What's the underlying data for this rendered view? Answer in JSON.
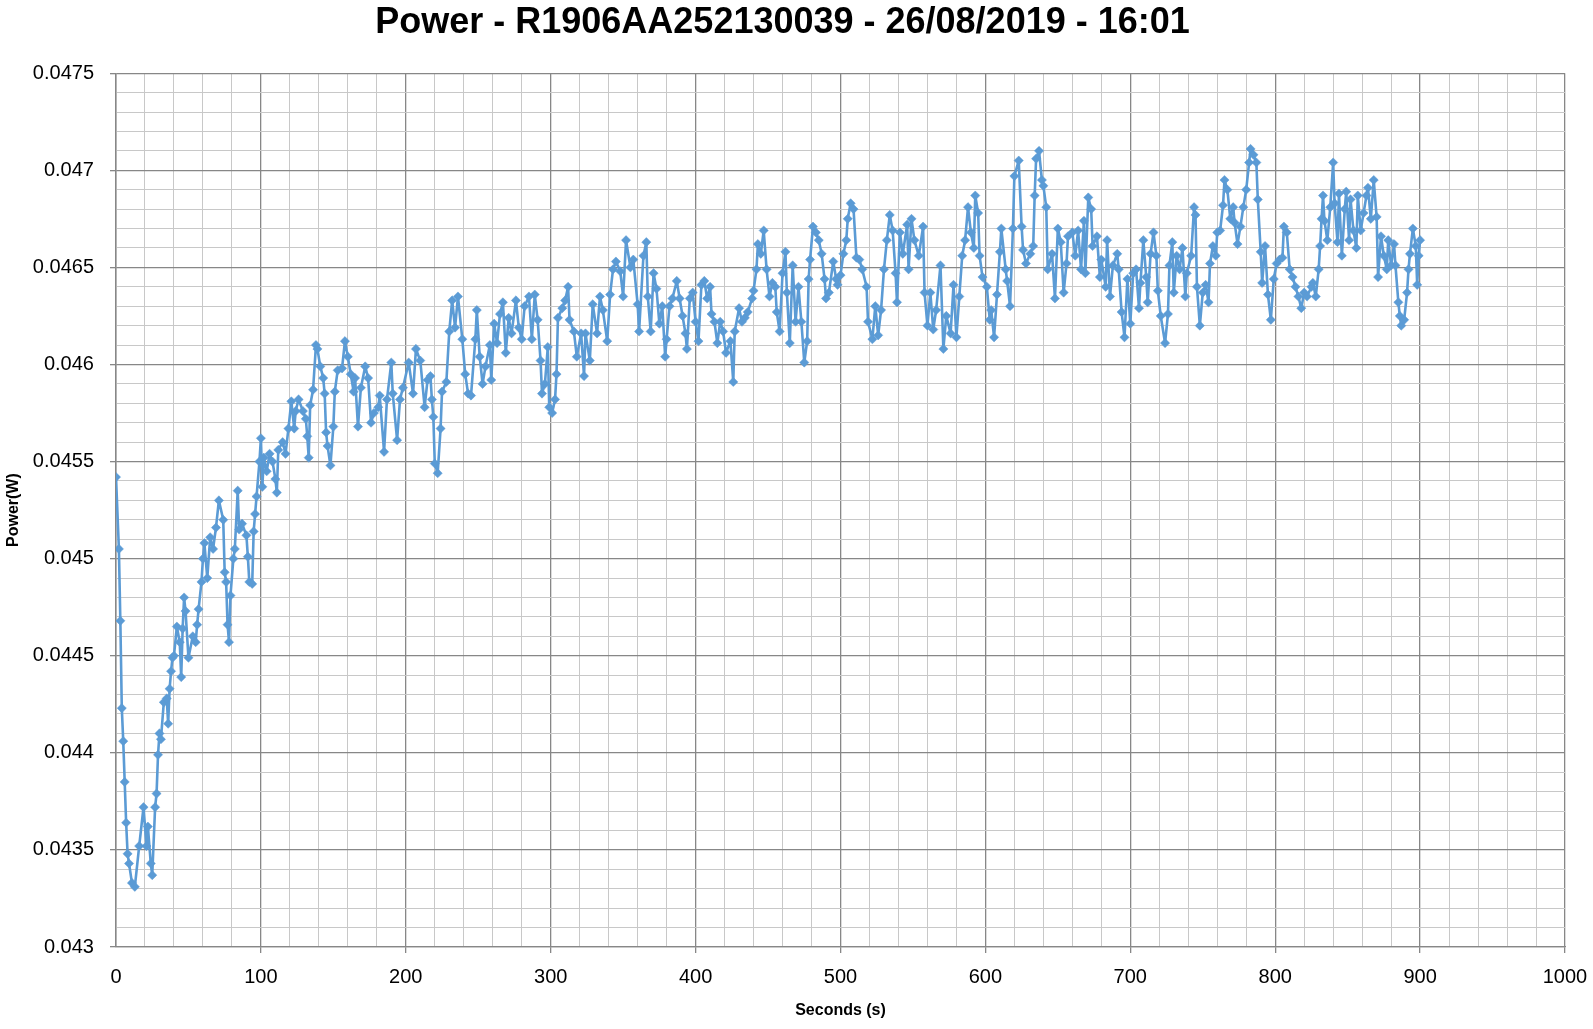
{
  "chart_data": {
    "type": "line",
    "title": "Power - R1906AA252130039 - 26/08/2019 - 16:01",
    "xlabel": "Seconds (s)",
    "ylabel": "Power(W)",
    "color": "#5b9bd5",
    "marker": "diamond",
    "line_style": "solid",
    "grid": true,
    "xlim": [
      0,
      1000
    ],
    "ylim": [
      0.043,
      0.0475
    ],
    "xticks": [
      0,
      {
        "value": 20,
        "label": null
      },
      {
        "value": 40,
        "label": null
      },
      {
        "value": 60,
        "label": null
      },
      {
        "value": 80,
        "label": null
      },
      100,
      {
        "value": 120,
        "label": null
      },
      {
        "value": 140,
        "label": null
      },
      {
        "value": 160,
        "label": null
      },
      {
        "value": 180,
        "label": null
      },
      200,
      {
        "value": 220,
        "label": null
      },
      {
        "value": 240,
        "label": null
      },
      {
        "value": 260,
        "label": null
      },
      {
        "value": 280,
        "label": null
      },
      300,
      {
        "value": 320,
        "label": null
      },
      {
        "value": 340,
        "label": null
      },
      {
        "value": 360,
        "label": null
      },
      {
        "value": 380,
        "label": null
      },
      400,
      {
        "value": 420,
        "label": null
      },
      {
        "value": 440,
        "label": null
      },
      {
        "value": 460,
        "label": null
      },
      {
        "value": 480,
        "label": null
      },
      500,
      {
        "value": 520,
        "label": null
      },
      {
        "value": 540,
        "label": null
      },
      {
        "value": 560,
        "label": null
      },
      {
        "value": 580,
        "label": null
      },
      600,
      {
        "value": 620,
        "label": null
      },
      {
        "value": 640,
        "label": null
      },
      {
        "value": 660,
        "label": null
      },
      {
        "value": 680,
        "label": null
      },
      700,
      {
        "value": 720,
        "label": null
      },
      {
        "value": 740,
        "label": null
      },
      {
        "value": 760,
        "label": null
      },
      {
        "value": 780,
        "label": null
      },
      800,
      {
        "value": 820,
        "label": null
      },
      {
        "value": 840,
        "label": null
      },
      {
        "value": 860,
        "label": null
      },
      {
        "value": 880,
        "label": null
      },
      900,
      {
        "value": 920,
        "label": null
      },
      {
        "value": 940,
        "label": null
      },
      {
        "value": 960,
        "label": null
      },
      {
        "value": 980,
        "label": null
      },
      1000
    ],
    "yticks": [
      0.043,
      {
        "value": 0.0431,
        "label": null
      },
      {
        "value": 0.0432,
        "label": null
      },
      {
        "value": 0.0433,
        "label": null
      },
      {
        "value": 0.0434,
        "label": null
      },
      0.0435,
      {
        "value": 0.0436,
        "label": null
      },
      {
        "value": 0.0437,
        "label": null
      },
      {
        "value": 0.0438,
        "label": null
      },
      {
        "value": 0.0439,
        "label": null
      },
      0.044,
      {
        "value": 0.0441,
        "label": null
      },
      {
        "value": 0.0442,
        "label": null
      },
      {
        "value": 0.0443,
        "label": null
      },
      {
        "value": 0.0444,
        "label": null
      },
      0.0445,
      {
        "value": 0.0446,
        "label": null
      },
      {
        "value": 0.0447,
        "label": null
      },
      {
        "value": 0.0448,
        "label": null
      },
      {
        "value": 0.0449,
        "label": null
      },
      0.045,
      {
        "value": 0.0451,
        "label": null
      },
      {
        "value": 0.0452,
        "label": null
      },
      {
        "value": 0.0453,
        "label": null
      },
      {
        "value": 0.0454,
        "label": null
      },
      0.0455,
      {
        "value": 0.0456,
        "label": null
      },
      {
        "value": 0.0457,
        "label": null
      },
      {
        "value": 0.0458,
        "label": null
      },
      {
        "value": 0.0459,
        "label": null
      },
      0.046,
      {
        "value": 0.0461,
        "label": null
      },
      {
        "value": 0.0462,
        "label": null
      },
      {
        "value": 0.0463,
        "label": null
      },
      {
        "value": 0.0464,
        "label": null
      },
      0.0465,
      {
        "value": 0.0466,
        "label": null
      },
      {
        "value": 0.0467,
        "label": null
      },
      {
        "value": 0.0468,
        "label": null
      },
      {
        "value": 0.0469,
        "label": null
      },
      0.047,
      {
        "value": 0.0471,
        "label": null
      },
      {
        "value": 0.0472,
        "label": null
      },
      {
        "value": 0.0473,
        "label": null
      },
      {
        "value": 0.0474,
        "label": null
      },
      0.0475
    ],
    "x": [
      0,
      2,
      3,
      4,
      5,
      6,
      7,
      8,
      9,
      11,
      13,
      16,
      19,
      21,
      22,
      24,
      25,
      27,
      28,
      29,
      30,
      31,
      33,
      35,
      36,
      37,
      38,
      39,
      40,
      42,
      44,
      45,
      46,
      47,
      48,
      50,
      53,
      55,
      56,
      57,
      59,
      60,
      61,
      63,
      65,
      67,
      69,
      71,
      74,
      75,
      76,
      77,
      78,
      79,
      81,
      82,
      84,
      85,
      87,
      90,
      91,
      92,
      94,
      95,
      96,
      97,
      99,
      100,
      101,
      102,
      104,
      106,
      108,
      110,
      111,
      112,
      115,
      117,
      119,
      121,
      123,
      124,
      126,
      129,
      131,
      132,
      133,
      134,
      136,
      138,
      139,
      141,
      143,
      144,
      145,
      146,
      148,
      150,
      151,
      153,
      156,
      158,
      160,
      162,
      164,
      165,
      167,
      169,
      172,
      174,
      176,
      178,
      181,
      182,
      185,
      187,
      190,
      191,
      194,
      196,
      198,
      202,
      205,
      207,
      210,
      213,
      215,
      217,
      218,
      219,
      220,
      222,
      224,
      225,
      228,
      230,
      232,
      234,
      236,
      239,
      241,
      243,
      245,
      248,
      249,
      251,
      253,
      255,
      258,
      259,
      261,
      263,
      265,
      267,
      269,
      271,
      273,
      276,
      278,
      280,
      282,
      285,
      287,
      289,
      291,
      293,
      294,
      296,
      298,
      299,
      301,
      303,
      304,
      305,
      308,
      310,
      312,
      313,
      316,
      318,
      321,
      323,
      324,
      327,
      329,
      332,
      334,
      336,
      339,
      341,
      343,
      345,
      348,
      350,
      352,
      355,
      357,
      360,
      361,
      364,
      366,
      367,
      369,
      371,
      373,
      375,
      377,
      379,
      380,
      382,
      384,
      387,
      389,
      391,
      393,
      394,
      396,
      398,
      400,
      402,
      404,
      406,
      408,
      410,
      411,
      413,
      415,
      417,
      419,
      421,
      424,
      426,
      427,
      430,
      432,
      434,
      436,
      439,
      440,
      442,
      443,
      445,
      447,
      449,
      451,
      453,
      455,
      456,
      458,
      460,
      462,
      463,
      465,
      467,
      469,
      471,
      473,
      475,
      477,
      478,
      479,
      481,
      483,
      485,
      487,
      489,
      490,
      492,
      495,
      497,
      498,
      500,
      502,
      504,
      505,
      507,
      509,
      511,
      513,
      515,
      518,
      519,
      522,
      524,
      526,
      528,
      530,
      532,
      534,
      536,
      538,
      539,
      541,
      543,
      546,
      547,
      549,
      551,
      554,
      557,
      558,
      560,
      562,
      564,
      566,
      569,
      571,
      573,
      576,
      578,
      580,
      582,
      584,
      586,
      588,
      590,
      592,
      593,
      595,
      596,
      598,
      601,
      603,
      604,
      606,
      608,
      610,
      611,
      614,
      615,
      617,
      619,
      620,
      623,
      625,
      626,
      628,
      631,
      633,
      634,
      635,
      637,
      639,
      640,
      642,
      643,
      646,
      648,
      650,
      652,
      654,
      656,
      657,
      660,
      662,
      664,
      666,
      668,
      669,
      671,
      673,
      674,
      677,
      679,
      680,
      683,
      684,
      686,
      688,
      691,
      692,
      694,
      696,
      698,
      700,
      702,
      704,
      706,
      707,
      709,
      711,
      712,
      714,
      716,
      718,
      719,
      721,
      724,
      726,
      727,
      729,
      730,
      732,
      734,
      736,
      738,
      739,
      742,
      744,
      745,
      746,
      748,
      750,
      752,
      754,
      755,
      757,
      759,
      760,
      762,
      764,
      765,
      767,
      769,
      771,
      772,
      774,
      776,
      778,
      780,
      782,
      783,
      785,
      787,
      788,
      790,
      791,
      793,
      795,
      797,
      799,
      801,
      803,
      805,
      806,
      808,
      810,
      812,
      814,
      816,
      818,
      820,
      822,
      825,
      826,
      828,
      830,
      831,
      832,
      833,
      834,
      836,
      838,
      840,
      841,
      843,
      844,
      846,
      848,
      849,
      851,
      852,
      854,
      856,
      857,
      859,
      861,
      863,
      864,
      866,
      868,
      870,
      871,
      873,
      875,
      877,
      878,
      880,
      882,
      883,
      885,
      886,
      887,
      889,
      891,
      892,
      893,
      895,
      897,
      898,
      899,
      900
    ],
    "values": [
      0.04542,
      0.04505,
      0.04468,
      0.04423,
      0.04406,
      0.04385,
      0.04364,
      0.04348,
      0.04343,
      0.04333,
      0.04331,
      0.04352,
      0.04372,
      0.04352,
      0.04362,
      0.04343,
      0.04337,
      0.04372,
      0.04379,
      0.04399,
      0.0441,
      0.04407,
      0.04426,
      0.04428,
      0.04415,
      0.04433,
      0.04442,
      0.04449,
      0.0445,
      0.04465,
      0.04457,
      0.04439,
      0.04464,
      0.0448,
      0.04473,
      0.04449,
      0.0446,
      0.04457,
      0.04466,
      0.04474,
      0.04488,
      0.045,
      0.04508,
      0.0449,
      0.04511,
      0.04505,
      0.04516,
      0.0453,
      0.0452,
      0.04493,
      0.04488,
      0.04466,
      0.04457,
      0.04481,
      0.045,
      0.04505,
      0.04535,
      0.04515,
      0.04518,
      0.04512,
      0.04501,
      0.04488,
      0.04487,
      0.04514,
      0.04523,
      0.04532,
      0.0455,
      0.04562,
      0.04537,
      0.04552,
      0.04545,
      0.04554,
      0.0455,
      0.04541,
      0.04534,
      0.04556,
      0.0456,
      0.04554,
      0.04567,
      0.04581,
      0.04567,
      0.04576,
      0.04582,
      0.04576,
      0.04572,
      0.04563,
      0.04552,
      0.04579,
      0.04587,
      0.0461,
      0.04608,
      0.04599,
      0.04593,
      0.04585,
      0.04565,
      0.04558,
      0.04548,
      0.04568,
      0.04586,
      0.04597,
      0.04598,
      0.04612,
      0.04604,
      0.04595,
      0.04586,
      0.04593,
      0.04568,
      0.04588,
      0.04599,
      0.04593,
      0.0457,
      0.04575,
      0.04578,
      0.04584,
      0.04555,
      0.04582,
      0.04601,
      0.04585,
      0.04561,
      0.04582,
      0.04588,
      0.04601,
      0.04585,
      0.04608,
      0.04602,
      0.04578,
      0.04592,
      0.04594,
      0.04582,
      0.04573,
      0.04549,
      0.04544,
      0.04567,
      0.04586,
      0.04591,
      0.04617,
      0.04633,
      0.04619,
      0.04635,
      0.04613,
      0.04595,
      0.04585,
      0.04584,
      0.04613,
      0.04628,
      0.04604,
      0.0459,
      0.04599,
      0.0461,
      0.04592,
      0.04621,
      0.04611,
      0.04626,
      0.04632,
      0.04606,
      0.04624,
      0.04616,
      0.04633,
      0.04619,
      0.04613,
      0.0463,
      0.04635,
      0.04613,
      0.04636,
      0.04623,
      0.04602,
      0.04585,
      0.0459,
      0.04609,
      0.04578,
      0.04575,
      0.04582,
      0.04595,
      0.04624,
      0.04629,
      0.04633,
      0.0464,
      0.04623,
      0.04617,
      0.04604,
      0.04616,
      0.04594,
      0.04616,
      0.04602,
      0.04631,
      0.04616,
      0.04635,
      0.04628,
      0.04612,
      0.04636,
      0.04649,
      0.04653,
      0.04648,
      0.04635,
      0.04664,
      0.0465,
      0.04654,
      0.04631,
      0.04617,
      0.04656,
      0.04663,
      0.04635,
      0.04617,
      0.04647,
      0.04639,
      0.04621,
      0.0463,
      0.04604,
      0.04613,
      0.0463,
      0.04634,
      0.04643,
      0.04634,
      0.04625,
      0.04616,
      0.04608,
      0.04634,
      0.04637,
      0.04622,
      0.04612,
      0.04641,
      0.04643,
      0.04634,
      0.0464,
      0.04626,
      0.04622,
      0.04611,
      0.04622,
      0.04617,
      0.04606,
      0.04612,
      0.04591,
      0.04617,
      0.04629,
      0.04622,
      0.04624,
      0.04627,
      0.04634,
      0.04638,
      0.04649,
      0.04662,
      0.04657,
      0.04669,
      0.04649,
      0.04635,
      0.04642,
      0.0464,
      0.04627,
      0.04617,
      0.04647,
      0.04658,
      0.04637,
      0.04611,
      0.04651,
      0.04622,
      0.0464,
      0.04622,
      0.04601,
      0.04612,
      0.04644,
      0.04654,
      0.04671,
      0.04668,
      0.04664,
      0.04657,
      0.04644,
      0.04634,
      0.04637,
      0.04653,
      0.04644,
      0.04641,
      0.04646,
      0.04657,
      0.04664,
      0.04675,
      0.04683,
      0.0468,
      0.04655,
      0.04654,
      0.04649,
      0.0464,
      0.04622,
      0.04613,
      0.0463,
      0.04615,
      0.04628,
      0.04649,
      0.04664,
      0.04677,
      0.04669,
      0.04647,
      0.04632,
      0.04668,
      0.04657,
      0.04672,
      0.04649,
      0.04675,
      0.04664,
      0.04656,
      0.04671,
      0.04637,
      0.0462,
      0.04637,
      0.04618,
      0.04628,
      0.04651,
      0.04608,
      0.04625,
      0.04616,
      0.04641,
      0.04614,
      0.04635,
      0.04656,
      0.04664,
      0.04681,
      0.04668,
      0.0466,
      0.04687,
      0.04678,
      0.04656,
      0.04645,
      0.0464,
      0.04623,
      0.04628,
      0.04614,
      0.04636,
      0.04658,
      0.0467,
      0.04649,
      0.04643,
      0.0463,
      0.0467,
      0.04697,
      0.04705,
      0.04671,
      0.04659,
      0.04652,
      0.04657,
      0.04661,
      0.04687,
      0.04706,
      0.0471,
      0.04695,
      0.04692,
      0.04681,
      0.04649,
      0.04657,
      0.04634,
      0.0467,
      0.04663,
      0.04637,
      0.04652,
      0.04666,
      0.04668,
      0.04656,
      0.04669,
      0.04649,
      0.04674,
      0.04647,
      0.04686,
      0.0468,
      0.04661,
      0.04666,
      0.04645,
      0.04654,
      0.0464,
      0.04664,
      0.04635,
      0.04651,
      0.04657,
      0.04649,
      0.04627,
      0.04614,
      0.04644,
      0.04621,
      0.04647,
      0.04649,
      0.04629,
      0.04642,
      0.04664,
      0.04645,
      0.04632,
      0.04657,
      0.04668,
      0.04656,
      0.04638,
      0.04625,
      0.04611,
      0.04626,
      0.04651,
      0.04663,
      0.04637,
      0.04656,
      0.04649,
      0.0466,
      0.04635,
      0.04647,
      0.04656,
      0.04681,
      0.04677,
      0.0464,
      0.0462,
      0.04637,
      0.04641,
      0.04632,
      0.04652,
      0.04661,
      0.04656,
      0.04668,
      0.04669,
      0.04682,
      0.04695,
      0.0469,
      0.04675,
      0.04681,
      0.04673,
      0.04662,
      0.04671,
      0.04681,
      0.0469,
      0.04704,
      0.04711,
      0.04708,
      0.04704,
      0.04685,
      0.04658,
      0.04642,
      0.04661,
      0.04636,
      0.04623,
      0.04644,
      0.04652,
      0.04654,
      0.04655,
      0.04671,
      0.04668,
      0.04649,
      0.04645,
      0.0464,
      0.04635,
      0.04629,
      0.04637,
      0.04635,
      0.0464,
      0.04642,
      0.04635,
      0.04649,
      0.04661,
      0.04675,
      0.04687,
      0.04674,
      0.04664,
      0.04681,
      0.04704,
      0.04683,
      0.04663,
      0.04688,
      0.04656,
      0.0468,
      0.04689,
      0.04664,
      0.04685,
      0.04669,
      0.0466,
      0.04687,
      0.04669,
      0.04678,
      0.04687,
      0.04691,
      0.04675,
      0.04695,
      0.04676,
      0.04645,
      0.04666,
      0.04656,
      0.04649,
      0.04664,
      0.04651,
      0.04662,
      0.04651,
      0.04632,
      0.04625,
      0.0462,
      0.04623,
      0.04637,
      0.04649,
      0.04657,
      0.0467,
      0.04661,
      0.04641,
      0.04656,
      0.04664
    ]
  }
}
